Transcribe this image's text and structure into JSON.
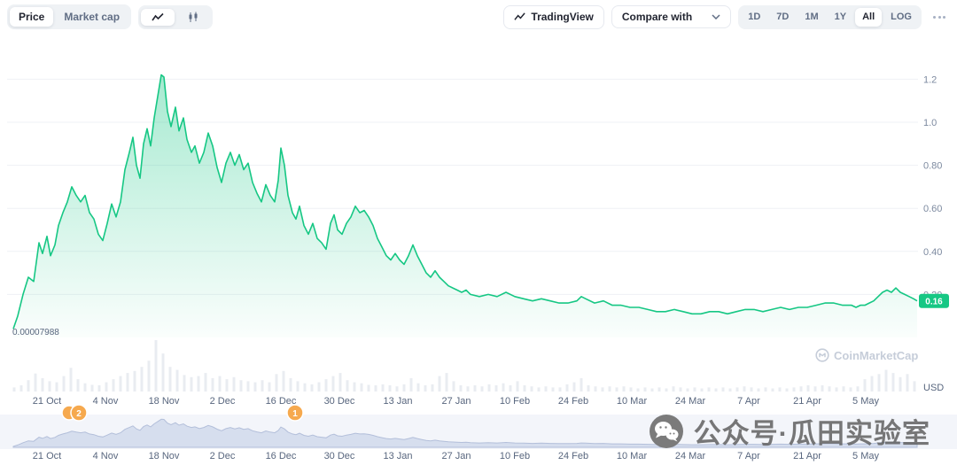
{
  "toolbar": {
    "left": {
      "price_label": "Price",
      "market_cap_label": "Market cap"
    },
    "right": {
      "tradingview_label": "TradingView",
      "compare_label": "Compare with",
      "ranges": [
        "1D",
        "7D",
        "1M",
        "1Y",
        "All",
        "LOG"
      ],
      "active_range": "All"
    }
  },
  "chart_data": {
    "type": "area",
    "title": "",
    "currency": "USD",
    "line_color": "#16c784",
    "marker_color": "#f6a94e",
    "grid": true,
    "ylim": [
      0,
      1.25
    ],
    "y_ticks": [
      "1.2",
      "1.0",
      "0.80",
      "0.60",
      "0.40",
      "0.20"
    ],
    "y_tick_values": [
      1.2,
      1.0,
      0.8,
      0.6,
      0.4,
      0.2
    ],
    "x_labels": [
      "21 Oct",
      "4 Nov",
      "18 Nov",
      "2 Dec",
      "16 Dec",
      "30 Dec",
      "13 Jan",
      "27 Jan",
      "10 Feb",
      "24 Feb",
      "10 Mar",
      "24 Mar",
      "7 Apr",
      "21 Apr",
      "5 May"
    ],
    "min_label": "0.00007988",
    "current_price_label": "0.16",
    "series": [
      {
        "name": "Price",
        "points": [
          [
            15,
            0.04
          ],
          [
            20,
            0.1
          ],
          [
            26,
            0.2
          ],
          [
            32,
            0.28
          ],
          [
            38,
            0.26
          ],
          [
            44,
            0.44
          ],
          [
            48,
            0.39
          ],
          [
            53,
            0.47
          ],
          [
            57,
            0.38
          ],
          [
            62,
            0.43
          ],
          [
            66,
            0.52
          ],
          [
            71,
            0.58
          ],
          [
            76,
            0.63
          ],
          [
            81,
            0.7
          ],
          [
            86,
            0.66
          ],
          [
            91,
            0.63
          ],
          [
            96,
            0.66
          ],
          [
            101,
            0.58
          ],
          [
            106,
            0.55
          ],
          [
            111,
            0.48
          ],
          [
            116,
            0.45
          ],
          [
            121,
            0.53
          ],
          [
            126,
            0.62
          ],
          [
            131,
            0.56
          ],
          [
            136,
            0.63
          ],
          [
            141,
            0.78
          ],
          [
            146,
            0.86
          ],
          [
            150,
            0.93
          ],
          [
            154,
            0.8
          ],
          [
            158,
            0.74
          ],
          [
            162,
            0.9
          ],
          [
            166,
            0.97
          ],
          [
            170,
            0.89
          ],
          [
            174,
            1.02
          ],
          [
            178,
            1.12
          ],
          [
            182,
            1.22
          ],
          [
            185,
            1.21
          ],
          [
            189,
            1.05
          ],
          [
            193,
            0.98
          ],
          [
            198,
            1.07
          ],
          [
            202,
            0.96
          ],
          [
            207,
            1.02
          ],
          [
            211,
            0.92
          ],
          [
            216,
            0.86
          ],
          [
            220,
            0.89
          ],
          [
            225,
            0.81
          ],
          [
            230,
            0.86
          ],
          [
            235,
            0.95
          ],
          [
            240,
            0.89
          ],
          [
            245,
            0.79
          ],
          [
            250,
            0.72
          ],
          [
            255,
            0.81
          ],
          [
            260,
            0.86
          ],
          [
            265,
            0.8
          ],
          [
            270,
            0.85
          ],
          [
            275,
            0.78
          ],
          [
            280,
            0.81
          ],
          [
            285,
            0.72
          ],
          [
            290,
            0.67
          ],
          [
            295,
            0.63
          ],
          [
            300,
            0.71
          ],
          [
            305,
            0.66
          ],
          [
            310,
            0.63
          ],
          [
            314,
            0.73
          ],
          [
            317,
            0.88
          ],
          [
            321,
            0.8
          ],
          [
            325,
            0.66
          ],
          [
            330,
            0.58
          ],
          [
            334,
            0.55
          ],
          [
            338,
            0.61
          ],
          [
            343,
            0.52
          ],
          [
            348,
            0.48
          ],
          [
            353,
            0.53
          ],
          [
            358,
            0.46
          ],
          [
            363,
            0.44
          ],
          [
            368,
            0.41
          ],
          [
            373,
            0.53
          ],
          [
            377,
            0.57
          ],
          [
            381,
            0.5
          ],
          [
            386,
            0.48
          ],
          [
            391,
            0.53
          ],
          [
            396,
            0.56
          ],
          [
            401,
            0.61
          ],
          [
            406,
            0.58
          ],
          [
            411,
            0.59
          ],
          [
            416,
            0.56
          ],
          [
            421,
            0.52
          ],
          [
            426,
            0.46
          ],
          [
            431,
            0.42
          ],
          [
            436,
            0.38
          ],
          [
            441,
            0.36
          ],
          [
            446,
            0.39
          ],
          [
            451,
            0.36
          ],
          [
            456,
            0.34
          ],
          [
            461,
            0.38
          ],
          [
            466,
            0.43
          ],
          [
            471,
            0.38
          ],
          [
            476,
            0.34
          ],
          [
            481,
            0.3
          ],
          [
            486,
            0.28
          ],
          [
            491,
            0.31
          ],
          [
            496,
            0.28
          ],
          [
            501,
            0.26
          ],
          [
            506,
            0.24
          ],
          [
            511,
            0.23
          ],
          [
            516,
            0.22
          ],
          [
            521,
            0.21
          ],
          [
            526,
            0.22
          ],
          [
            531,
            0.2
          ],
          [
            541,
            0.19
          ],
          [
            551,
            0.2
          ],
          [
            561,
            0.19
          ],
          [
            571,
            0.21
          ],
          [
            581,
            0.19
          ],
          [
            591,
            0.18
          ],
          [
            601,
            0.17
          ],
          [
            611,
            0.18
          ],
          [
            621,
            0.17
          ],
          [
            631,
            0.16
          ],
          [
            641,
            0.16
          ],
          [
            651,
            0.17
          ],
          [
            656,
            0.19
          ],
          [
            661,
            0.18
          ],
          [
            671,
            0.16
          ],
          [
            681,
            0.17
          ],
          [
            691,
            0.15
          ],
          [
            701,
            0.15
          ],
          [
            711,
            0.14
          ],
          [
            721,
            0.14
          ],
          [
            731,
            0.13
          ],
          [
            741,
            0.12
          ],
          [
            751,
            0.12
          ],
          [
            761,
            0.13
          ],
          [
            771,
            0.12
          ],
          [
            781,
            0.11
          ],
          [
            791,
            0.11
          ],
          [
            801,
            0.12
          ],
          [
            811,
            0.12
          ],
          [
            821,
            0.11
          ],
          [
            831,
            0.12
          ],
          [
            841,
            0.13
          ],
          [
            851,
            0.13
          ],
          [
            861,
            0.12
          ],
          [
            871,
            0.13
          ],
          [
            881,
            0.14
          ],
          [
            891,
            0.13
          ],
          [
            901,
            0.14
          ],
          [
            911,
            0.14
          ],
          [
            921,
            0.15
          ],
          [
            931,
            0.16
          ],
          [
            941,
            0.16
          ],
          [
            951,
            0.15
          ],
          [
            961,
            0.15
          ],
          [
            966,
            0.14
          ],
          [
            971,
            0.15
          ],
          [
            976,
            0.15
          ],
          [
            981,
            0.16
          ],
          [
            986,
            0.17
          ],
          [
            991,
            0.19
          ],
          [
            996,
            0.21
          ],
          [
            1001,
            0.22
          ],
          [
            1006,
            0.21
          ],
          [
            1011,
            0.23
          ],
          [
            1016,
            0.21
          ],
          [
            1021,
            0.2
          ],
          [
            1026,
            0.19
          ],
          [
            1031,
            0.18
          ],
          [
            1035,
            0.17
          ]
        ]
      }
    ],
    "volume": [
      [
        16,
        8
      ],
      [
        24,
        12
      ],
      [
        32,
        22
      ],
      [
        40,
        35
      ],
      [
        48,
        26
      ],
      [
        56,
        20
      ],
      [
        64,
        18
      ],
      [
        72,
        30
      ],
      [
        80,
        46
      ],
      [
        88,
        24
      ],
      [
        96,
        16
      ],
      [
        104,
        13
      ],
      [
        112,
        12
      ],
      [
        120,
        18
      ],
      [
        128,
        24
      ],
      [
        136,
        30
      ],
      [
        144,
        36
      ],
      [
        152,
        40
      ],
      [
        160,
        48
      ],
      [
        168,
        60
      ],
      [
        176,
        100
      ],
      [
        184,
        74
      ],
      [
        192,
        48
      ],
      [
        200,
        42
      ],
      [
        208,
        32
      ],
      [
        216,
        28
      ],
      [
        224,
        30
      ],
      [
        232,
        36
      ],
      [
        240,
        26
      ],
      [
        248,
        30
      ],
      [
        256,
        24
      ],
      [
        264,
        28
      ],
      [
        272,
        22
      ],
      [
        280,
        20
      ],
      [
        288,
        18
      ],
      [
        296,
        22
      ],
      [
        304,
        18
      ],
      [
        312,
        34
      ],
      [
        320,
        40
      ],
      [
        328,
        26
      ],
      [
        336,
        20
      ],
      [
        344,
        16
      ],
      [
        352,
        14
      ],
      [
        360,
        18
      ],
      [
        368,
        24
      ],
      [
        376,
        30
      ],
      [
        384,
        36
      ],
      [
        392,
        22
      ],
      [
        400,
        18
      ],
      [
        408,
        16
      ],
      [
        416,
        13
      ],
      [
        424,
        12
      ],
      [
        432,
        14
      ],
      [
        440,
        12
      ],
      [
        448,
        10
      ],
      [
        456,
        14
      ],
      [
        464,
        26
      ],
      [
        472,
        16
      ],
      [
        480,
        12
      ],
      [
        488,
        14
      ],
      [
        496,
        30
      ],
      [
        504,
        36
      ],
      [
        512,
        20
      ],
      [
        520,
        12
      ],
      [
        528,
        10
      ],
      [
        536,
        12
      ],
      [
        544,
        10
      ],
      [
        552,
        14
      ],
      [
        560,
        12
      ],
      [
        568,
        16
      ],
      [
        576,
        12
      ],
      [
        584,
        20
      ],
      [
        592,
        12
      ],
      [
        600,
        10
      ],
      [
        608,
        8
      ],
      [
        616,
        10
      ],
      [
        624,
        8
      ],
      [
        632,
        8
      ],
      [
        640,
        14
      ],
      [
        648,
        18
      ],
      [
        656,
        26
      ],
      [
        664,
        12
      ],
      [
        672,
        10
      ],
      [
        680,
        8
      ],
      [
        688,
        10
      ],
      [
        696,
        8
      ],
      [
        704,
        10
      ],
      [
        712,
        8
      ],
      [
        720,
        6
      ],
      [
        728,
        8
      ],
      [
        736,
        6
      ],
      [
        744,
        8
      ],
      [
        752,
        6
      ],
      [
        760,
        10
      ],
      [
        768,
        8
      ],
      [
        776,
        6
      ],
      [
        784,
        8
      ],
      [
        792,
        6
      ],
      [
        800,
        8
      ],
      [
        808,
        6
      ],
      [
        816,
        8
      ],
      [
        824,
        6
      ],
      [
        832,
        8
      ],
      [
        840,
        10
      ],
      [
        848,
        8
      ],
      [
        856,
        6
      ],
      [
        864,
        8
      ],
      [
        872,
        6
      ],
      [
        880,
        8
      ],
      [
        888,
        6
      ],
      [
        896,
        8
      ],
      [
        904,
        10
      ],
      [
        912,
        12
      ],
      [
        920,
        10
      ],
      [
        928,
        12
      ],
      [
        936,
        10
      ],
      [
        944,
        8
      ],
      [
        952,
        10
      ],
      [
        960,
        8
      ],
      [
        968,
        10
      ],
      [
        976,
        24
      ],
      [
        984,
        30
      ],
      [
        992,
        34
      ],
      [
        1000,
        42
      ],
      [
        1008,
        36
      ],
      [
        1016,
        28
      ],
      [
        1024,
        34
      ],
      [
        1032,
        20
      ]
    ],
    "markers": [
      {
        "x": 89,
        "label": "2",
        "stacked": true
      },
      {
        "x": 333,
        "label": "1",
        "stacked": false
      }
    ]
  },
  "watermarks": {
    "coinmarketcap": "CoinMarketCap",
    "overlay_text": "公众号·瓜田实验室"
  }
}
